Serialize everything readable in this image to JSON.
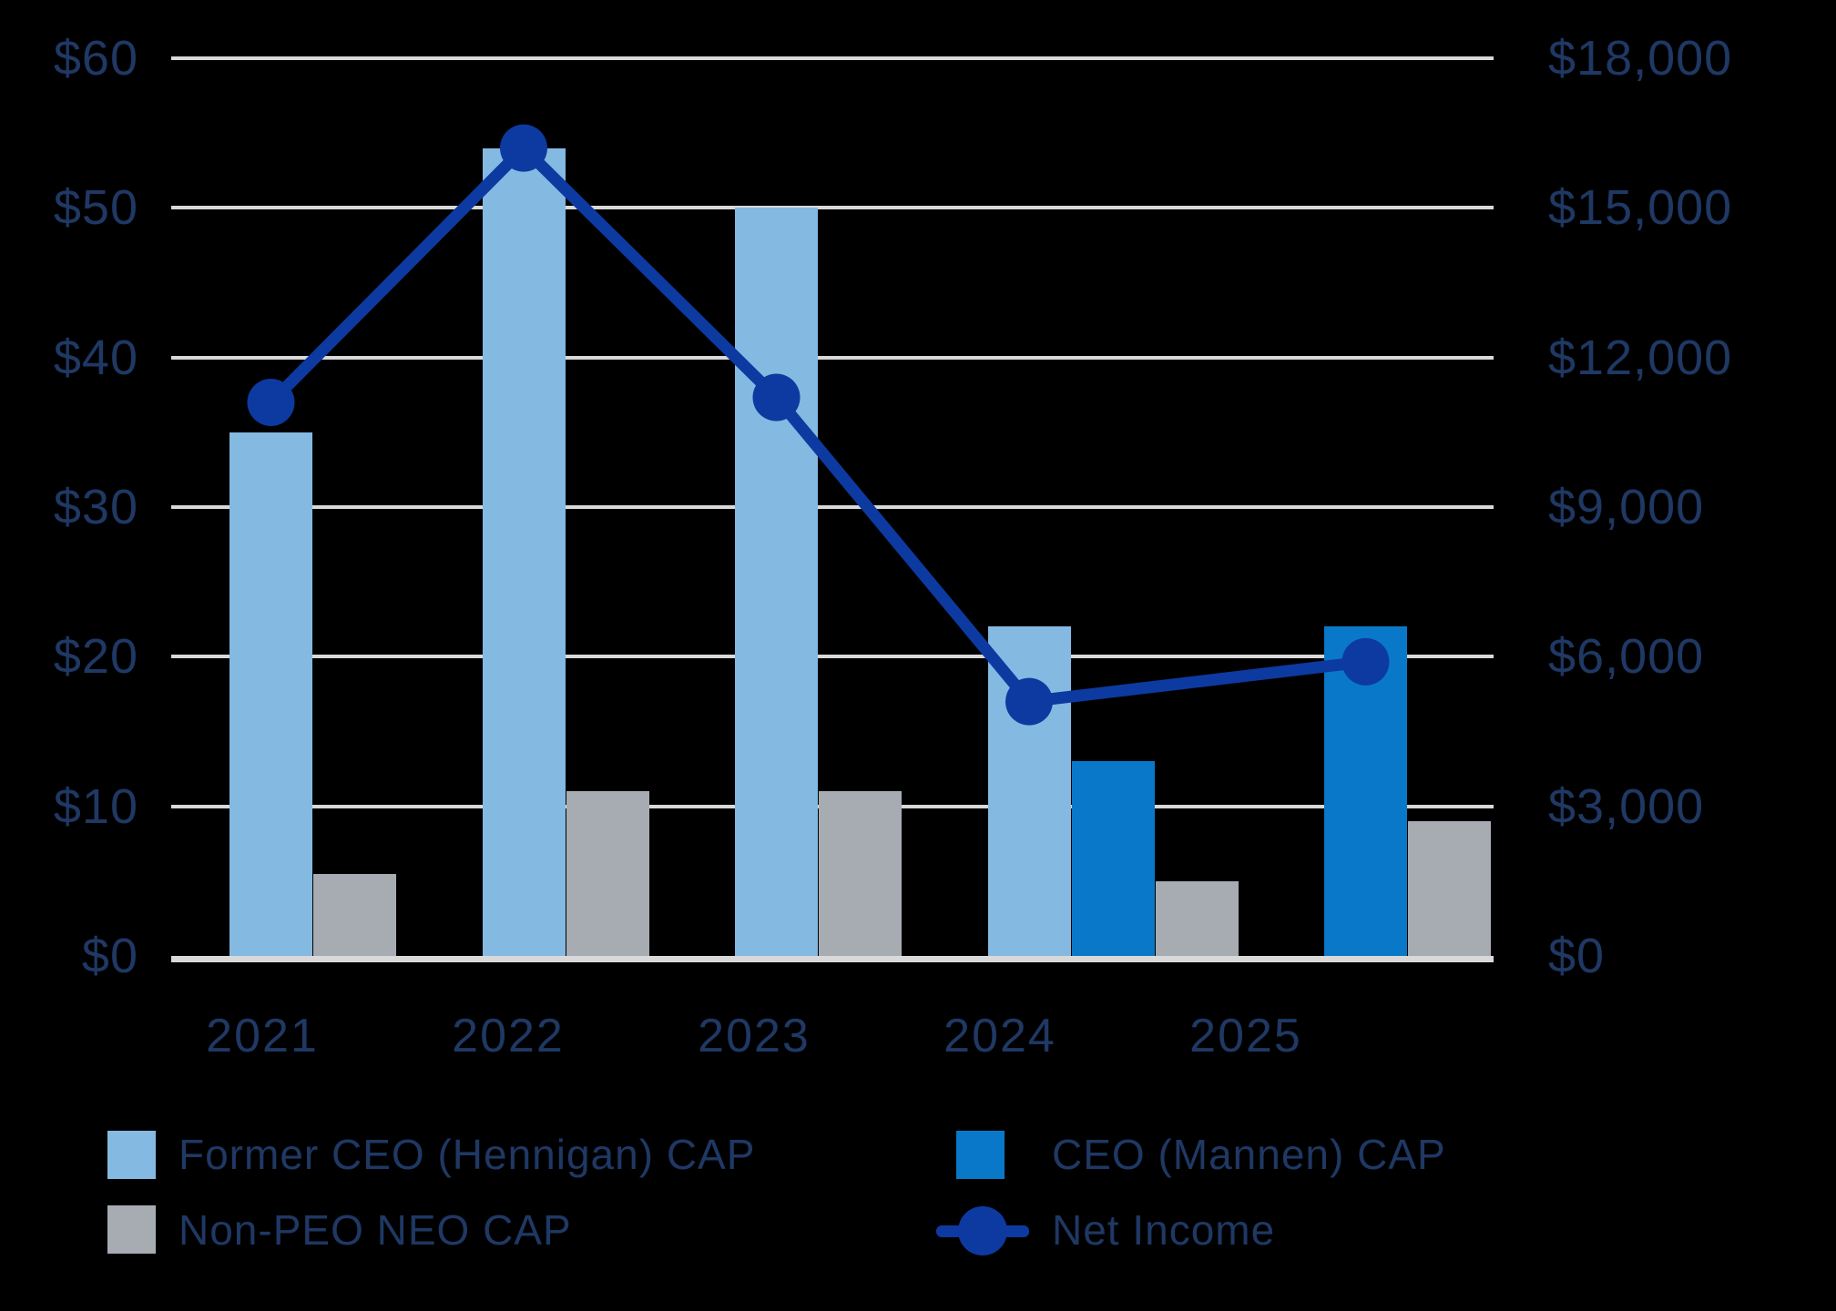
{
  "chart_data": {
    "type": "bar",
    "subtype": "grouped-bars-with-line-overlay",
    "categories": [
      "2021",
      "2022",
      "2023",
      "2024",
      "2025"
    ],
    "series": [
      {
        "name": "Former CEO (Hennigan) CAP",
        "type": "bar",
        "axis": "left",
        "color": "#84B9E2",
        "values": [
          35,
          54,
          50,
          22,
          null
        ]
      },
      {
        "name": "CEO (Mannen) CAP",
        "type": "bar",
        "axis": "left",
        "color": "#0A78C8",
        "values": [
          null,
          null,
          null,
          13,
          22
        ]
      },
      {
        "name": "Non-PEO NEO CAP",
        "type": "bar",
        "axis": "left",
        "color": "#A6ACB2",
        "values": [
          5.5,
          11,
          11,
          5,
          9
        ]
      },
      {
        "name": "Net Income",
        "type": "line",
        "axis": "right",
        "color": "#0D3AA0",
        "values": [
          11100,
          16200,
          11200,
          5100,
          5900
        ]
      }
    ],
    "left_axis": {
      "min": 0,
      "max": 60,
      "step": 10,
      "tick_labels": [
        "$0",
        "$10",
        "$20",
        "$30",
        "$40",
        "$50",
        "$60"
      ]
    },
    "right_axis": {
      "min": 0,
      "max": 18000,
      "step": 3000,
      "tick_labels": [
        "$0",
        "$3,000",
        "$6,000",
        "$9,000",
        "$12,000",
        "$15,000",
        "$18,000"
      ]
    },
    "grid": true,
    "legend_position": "bottom",
    "title": "",
    "xlabel": "",
    "ylabel": ""
  },
  "colors": {
    "background": "#000000",
    "gridline": "#D9D9D9",
    "text": "#1F3864",
    "light_blue_bar": "#84B9E2",
    "medium_blue_bar": "#0A78C8",
    "gray_bar": "#A6ACB2",
    "net_income_line": "#0D3AA0"
  },
  "legend": {
    "items": [
      {
        "label": "Former CEO (Hennigan) CAP",
        "marker": "square",
        "color": "#84B9E2"
      },
      {
        "label": "CEO (Mannen) CAP",
        "marker": "square",
        "color": "#0A78C8"
      },
      {
        "label": "Non-PEO NEO CAP",
        "marker": "square",
        "color": "#A6ACB2"
      },
      {
        "label": "Net Income",
        "marker": "line",
        "color": "#0D3AA0"
      }
    ]
  }
}
